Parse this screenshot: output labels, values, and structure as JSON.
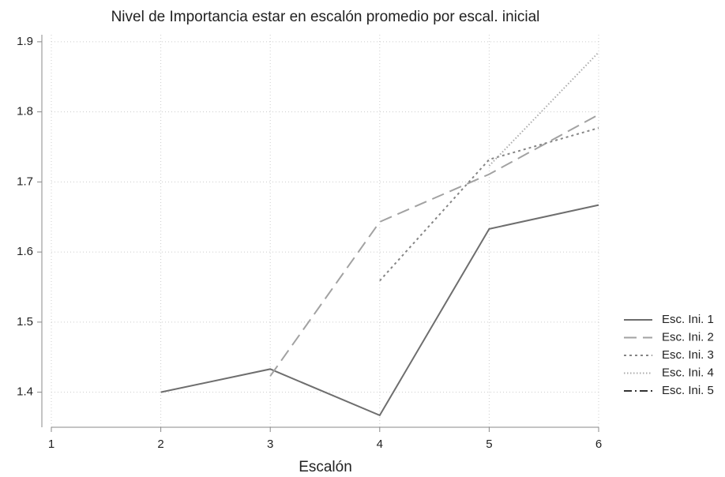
{
  "chart_data": {
    "type": "line",
    "title": "Nivel de Importancia estar en escalón promedio por escal. inicial",
    "x_label": "Escalón",
    "x": [
      1,
      2,
      3,
      4,
      5,
      6
    ],
    "series": [
      {
        "name": "Esc. Ini. 1",
        "color": "#6e6e6e",
        "dash": "none",
        "values": [
          null,
          1.4,
          1.433,
          1.367,
          1.633,
          1.667
        ]
      },
      {
        "name": "Esc. Ini. 2",
        "color": "#a2a2a2",
        "dash": "16 8",
        "values": [
          null,
          null,
          1.423,
          1.643,
          1.711,
          1.796
        ]
      },
      {
        "name": "Esc. Ini. 3",
        "color": "#858585",
        "dash": "3 4",
        "values": [
          null,
          null,
          null,
          1.559,
          1.732,
          1.777
        ]
      },
      {
        "name": "Esc. Ini. 4",
        "color": "#ababab",
        "dash": "1.5 2.5",
        "values": [
          null,
          null,
          null,
          null,
          1.723,
          1.885
        ]
      },
      {
        "name": "Esc. Ini. 5",
        "color": "#333333",
        "dash": "10 4 2 4",
        "values": [
          null,
          null,
          null,
          null,
          null,
          null
        ]
      }
    ],
    "xlim": [
      1,
      6
    ],
    "xticks": [
      1,
      2,
      3,
      4,
      5,
      6
    ],
    "ylim": [
      1.35,
      1.91
    ],
    "yticks": [
      1.4,
      1.5,
      1.6,
      1.7,
      1.8,
      1.9
    ],
    "grid": true,
    "legend": "right"
  }
}
